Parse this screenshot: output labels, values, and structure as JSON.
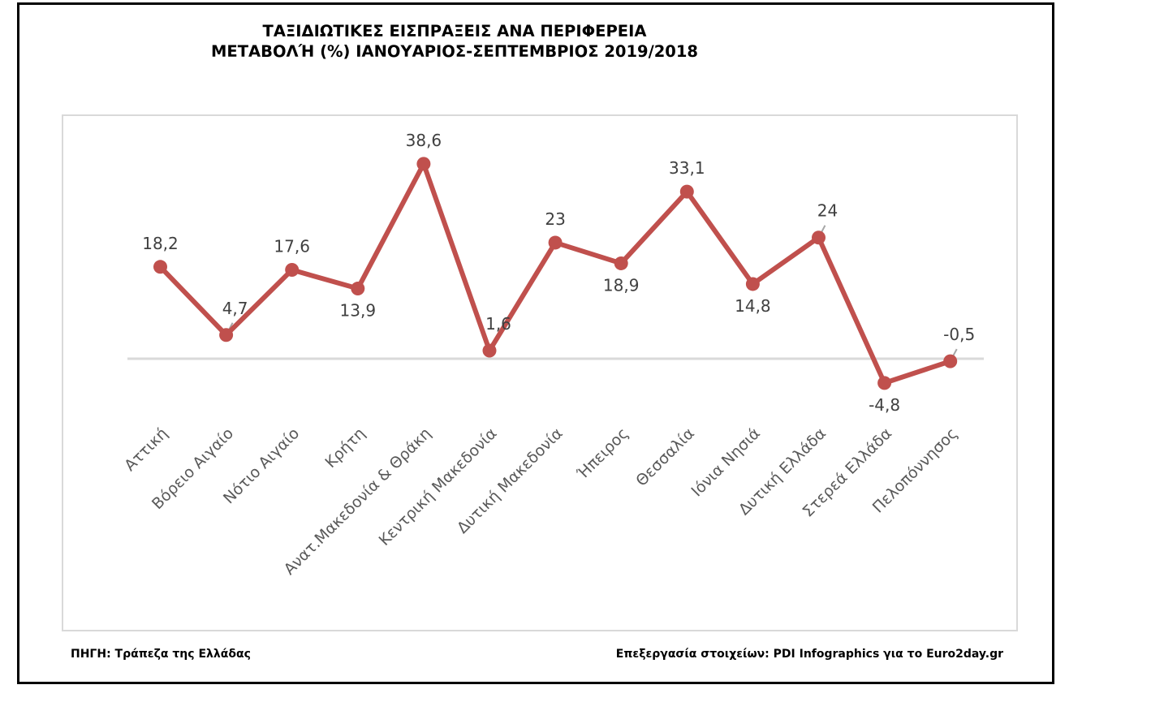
{
  "chart_data": {
    "type": "line",
    "title": "ΤΑΞΙΔΙΩΤΙΚΕΣ ΕΙΣΠΡΑΞΕΙΣ ΑΝΑ ΠΕΡΙΦΕΡΕΙΑ",
    "subtitle": "ΜΕΤΑΒΟΛΉ (%) ΙΑΝΟΥΑΡΙΟΣ-ΣΕΠΤΕΜΒΡΙΟΣ 2019/2018",
    "xlabel": "",
    "ylabel": "",
    "ylim": [
      -10,
      45
    ],
    "grid": false,
    "legend": "none",
    "categories": [
      "Αττική",
      "Βόρειο Αιγαίο",
      "Νότιο Αιγαίο",
      "Κρήτη",
      "Ανατ.Μακεδονία & Θράκη",
      "Κεντρική Μακεδονία",
      "Δυτική Μακεδονία",
      "Ήπειρος",
      "Θεσσαλία",
      "Ιόνια Νησιά",
      "Δυτική Ελλάδα",
      "Στερεά Ελλάδα",
      "Πελοπόννησος"
    ],
    "series": [
      {
        "name": "Μεταβολή (%)",
        "color": "#c0504d",
        "values": [
          18.2,
          4.7,
          17.6,
          13.9,
          38.6,
          1.6,
          23,
          18.9,
          33.1,
          14.8,
          24,
          -4.8,
          -0.5
        ],
        "labels": [
          "18,2",
          "4,7",
          "17,6",
          "13,9",
          "38,6",
          "1,6",
          "23",
          "18,9",
          "33,1",
          "14,8",
          "24",
          "-4,8",
          "-0,5"
        ],
        "label_positions": [
          "above",
          "above",
          "above",
          "below",
          "above",
          "above",
          "above",
          "below",
          "above",
          "below",
          "above",
          "below",
          "above"
        ],
        "leader_lines": [
          false,
          true,
          false,
          false,
          false,
          true,
          false,
          false,
          false,
          false,
          true,
          false,
          true
        ]
      }
    ]
  },
  "footer": {
    "source": "ΠΗΓΗ: Τράπεζα της Ελλάδας",
    "credit": "Επεξεργασία στοιχείων: PDI Infographics για το Euro2day.gr"
  },
  "colors": {
    "line": "#c0504d",
    "zero_line": "#d9d9d9",
    "plot_border": "#d9d9d9",
    "frame": "#000000",
    "data_label": "#404040",
    "axis_label": "#595959"
  }
}
